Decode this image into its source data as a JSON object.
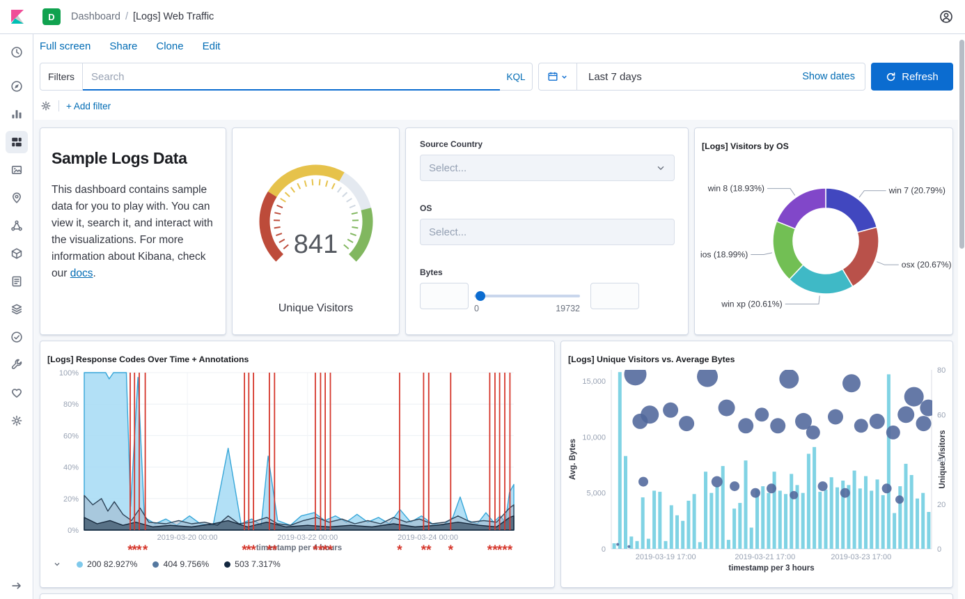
{
  "topbar": {
    "badge": "D",
    "breadcrumbs": [
      "Dashboard",
      "[Logs] Web Traffic"
    ],
    "separator": "/"
  },
  "sidebar": {
    "icons": [
      "clock-icon",
      "discover-icon",
      "visualize-icon",
      "dashboard-icon",
      "canvas-icon",
      "maps-icon",
      "machine-learning-icon",
      "infrastructure-icon",
      "logs-icon",
      "apm-icon",
      "uptime-icon",
      "dev-tools-icon",
      "monitoring-icon",
      "management-icon"
    ],
    "active_index": 3
  },
  "toolbar": {
    "actions": [
      "Full screen",
      "Share",
      "Clone",
      "Edit"
    ]
  },
  "query_bar": {
    "filters_label": "Filters",
    "search_placeholder": "Search",
    "kql_label": "KQL",
    "time_value": "Last 7 days",
    "show_dates": "Show dates",
    "refresh": "Refresh"
  },
  "filter_bar": {
    "add_filter": "+ Add filter"
  },
  "colors": {
    "accent_link": "#006bb4",
    "primary_button": "#0b6cd0",
    "badge_green": "#10a24f",
    "panel_border": "#d3dae6",
    "annotation_red": "#d5372c"
  },
  "panels": {
    "markdown": {
      "title": "Sample Logs Data",
      "text": "This dashboard contains sample data for you to play with. You can view it, search it, and interact with the visualizations. For more information about Kibana, check our ",
      "link": "docs",
      "suffix": "."
    },
    "controls": {
      "country_label": "Source Country",
      "country_placeholder": "Select...",
      "os_label": "OS",
      "os_placeholder": "Select...",
      "bytes_label": "Bytes",
      "range_min": "0",
      "range_max": "19732"
    }
  },
  "chart_data": [
    {
      "type": "gauge",
      "value": "841",
      "label": "Unique Visitors",
      "sweep_deg": [
        -135,
        135
      ],
      "segments": [
        {
          "from": -135,
          "to": -58,
          "color": "#bd4b3a"
        },
        {
          "from": -58,
          "to": 30,
          "color": "#e6c24b"
        },
        {
          "from": 30,
          "to": 76,
          "color": "#e4e9f0"
        },
        {
          "from": 76,
          "to": 135,
          "color": "#81b75f"
        }
      ]
    },
    {
      "type": "pie",
      "title": "[Logs] Visitors by OS",
      "donut": true,
      "slices": [
        {
          "label": "win 7",
          "pct": 20.79,
          "color": "#4147bf"
        },
        {
          "label": "osx",
          "pct": 20.67,
          "color": "#b9514a"
        },
        {
          "label": "win xp",
          "pct": 20.61,
          "color": "#3fb9c6"
        },
        {
          "label": "ios",
          "pct": 18.99,
          "color": "#72bf54"
        },
        {
          "label": "win 8",
          "pct": 18.93,
          "color": "#8147c9"
        }
      ]
    },
    {
      "type": "area",
      "title": "[Logs] Response Codes Over Time + Annotations",
      "xlabel": "timestamp per 4 hours",
      "x_ticks": [
        "2019-03-20 00:00",
        "2019-03-22 00:00",
        "2019-03-24 00:00"
      ],
      "x_tick_pos": [
        0.24,
        0.52,
        0.8
      ],
      "y_ticks": [
        "0%",
        "20%",
        "40%",
        "60%",
        "80%",
        "100%"
      ],
      "ylim": [
        0,
        100
      ],
      "annotation_color": "#d5372c",
      "annotation_marker": "*",
      "annotations_x": [
        0.107,
        0.117,
        0.128,
        0.142,
        0.373,
        0.383,
        0.394,
        0.431,
        0.443,
        0.538,
        0.55,
        0.561,
        0.573,
        0.734,
        0.79,
        0.802,
        0.853,
        0.944,
        0.956,
        0.967,
        0.979,
        0.991
      ],
      "series": [
        {
          "name": "200",
          "pct_label": "82.927%",
          "legend_color": "#7fc9eb",
          "fill": "#a4dbf5",
          "fill_opacity": 0.85,
          "line": "#36a6d8",
          "values": [
            [
              0,
              100
            ],
            [
              0.05,
              100
            ],
            [
              0.058,
              96
            ],
            [
              0.068,
              100
            ],
            [
              0.098,
              100
            ],
            [
              0.108,
              15
            ],
            [
              0.125,
              97
            ],
            [
              0.14,
              8
            ],
            [
              0.165,
              4
            ],
            [
              0.19,
              7
            ],
            [
              0.215,
              3
            ],
            [
              0.245,
              9
            ],
            [
              0.27,
              4
            ],
            [
              0.3,
              3
            ],
            [
              0.335,
              52
            ],
            [
              0.365,
              4
            ],
            [
              0.39,
              7
            ],
            [
              0.412,
              3
            ],
            [
              0.428,
              47
            ],
            [
              0.45,
              6
            ],
            [
              0.48,
              3
            ],
            [
              0.505,
              9
            ],
            [
              0.535,
              11
            ],
            [
              0.56,
              6
            ],
            [
              0.585,
              9
            ],
            [
              0.61,
              5
            ],
            [
              0.635,
              10
            ],
            [
              0.66,
              5
            ],
            [
              0.685,
              8
            ],
            [
              0.71,
              4
            ],
            [
              0.735,
              13
            ],
            [
              0.76,
              5
            ],
            [
              0.785,
              9
            ],
            [
              0.81,
              4
            ],
            [
              0.835,
              3
            ],
            [
              0.858,
              8
            ],
            [
              0.875,
              21
            ],
            [
              0.893,
              6
            ],
            [
              0.915,
              4
            ],
            [
              0.935,
              11
            ],
            [
              0.953,
              5
            ],
            [
              0.968,
              9
            ],
            [
              0.98,
              5
            ],
            [
              0.99,
              24
            ],
            [
              1,
              29
            ]
          ]
        },
        {
          "name": "404",
          "pct_label": "9.756%",
          "legend_color": "#54789f",
          "fill": "#9db0c3",
          "fill_opacity": 0.5,
          "line": "#2c4257",
          "values": [
            [
              0,
              22
            ],
            [
              0.02,
              16
            ],
            [
              0.04,
              20
            ],
            [
              0.055,
              12
            ],
            [
              0.07,
              18
            ],
            [
              0.09,
              10
            ],
            [
              0.11,
              6
            ],
            [
              0.13,
              14
            ],
            [
              0.15,
              5
            ],
            [
              0.19,
              4
            ],
            [
              0.22,
              6
            ],
            [
              0.25,
              4
            ],
            [
              0.28,
              5
            ],
            [
              0.31,
              3
            ],
            [
              0.335,
              9
            ],
            [
              0.36,
              4
            ],
            [
              0.39,
              5
            ],
            [
              0.425,
              8
            ],
            [
              0.45,
              4
            ],
            [
              0.48,
              3
            ],
            [
              0.51,
              6
            ],
            [
              0.54,
              8
            ],
            [
              0.57,
              5
            ],
            [
              0.6,
              7
            ],
            [
              0.63,
              4
            ],
            [
              0.66,
              6
            ],
            [
              0.69,
              4
            ],
            [
              0.72,
              8
            ],
            [
              0.75,
              5
            ],
            [
              0.78,
              7
            ],
            [
              0.81,
              4
            ],
            [
              0.84,
              5
            ],
            [
              0.87,
              9
            ],
            [
              0.9,
              5
            ],
            [
              0.93,
              6
            ],
            [
              0.96,
              5
            ],
            [
              0.99,
              14
            ],
            [
              1,
              16
            ]
          ]
        },
        {
          "name": "503",
          "pct_label": "7.317%",
          "legend_color": "#13273f",
          "fill": "#23374d",
          "fill_opacity": 0.6,
          "line": "#14263a",
          "values": [
            [
              0,
              8
            ],
            [
              0.03,
              4
            ],
            [
              0.06,
              6
            ],
            [
              0.09,
              3
            ],
            [
              0.12,
              5
            ],
            [
              0.16,
              2
            ],
            [
              0.2,
              3
            ],
            [
              0.25,
              2
            ],
            [
              0.3,
              4
            ],
            [
              0.335,
              6
            ],
            [
              0.38,
              2
            ],
            [
              0.425,
              5
            ],
            [
              0.47,
              2
            ],
            [
              0.52,
              3
            ],
            [
              0.57,
              2
            ],
            [
              0.62,
              3
            ],
            [
              0.67,
              2
            ],
            [
              0.72,
              4
            ],
            [
              0.77,
              2
            ],
            [
              0.82,
              3
            ],
            [
              0.87,
              5
            ],
            [
              0.92,
              3
            ],
            [
              0.96,
              2
            ],
            [
              0.99,
              8
            ],
            [
              1,
              9
            ]
          ]
        }
      ]
    },
    {
      "type": "bar+bubble",
      "title": "[Logs] Unique Visitors vs. Average Bytes",
      "xlabel": "timestamp per 3 hours",
      "x_ticks": [
        "2019-03-19 17:00",
        "2019-03-21 17:00",
        "2019-03-23 17:00"
      ],
      "x_tick_pos": [
        0.17,
        0.48,
        0.78
      ],
      "left_axis": {
        "label": "Avg. Bytes",
        "tick_values": [
          0,
          5000,
          10000,
          15000
        ],
        "tick_labels": [
          "0",
          "5,000",
          "10,000",
          "15,000"
        ],
        "max": 16000
      },
      "right_axis": {
        "label": "Unique Visitors",
        "tick_values": [
          0,
          20,
          40,
          60,
          80
        ],
        "tick_labels": [
          "0",
          "20",
          "40",
          "60",
          "80"
        ],
        "max": 80
      },
      "bars": {
        "color": "#80d3e4",
        "values": [
          500,
          15800,
          8300,
          1100,
          700,
          4600,
          900,
          5200,
          5100,
          700,
          3900,
          3000,
          2500,
          4300,
          4900,
          600,
          6900,
          5000,
          5600,
          7400,
          800,
          3600,
          4100,
          7900,
          1900,
          5300,
          5600,
          5000,
          6900,
          5200,
          4900,
          6700,
          5700,
          5000,
          8500,
          9100,
          5100,
          5300,
          6400,
          5500,
          6100,
          5700,
          7000,
          5400,
          6500,
          5200,
          6200,
          4800,
          15600,
          3200,
          5600,
          7600,
          6600,
          4500,
          5000,
          3300
        ]
      },
      "bubbles": {
        "color": "#50669b",
        "opacity": 0.88,
        "points": [
          {
            "x": 0.02,
            "y": 2,
            "r": 2
          },
          {
            "x": 0.055,
            "y": 1,
            "r": 2
          },
          {
            "x": 0.075,
            "y": 78,
            "r": 16
          },
          {
            "x": 0.09,
            "y": 57,
            "r": 11
          },
          {
            "x": 0.12,
            "y": 60,
            "r": 13
          },
          {
            "x": 0.1,
            "y": 30,
            "r": 7
          },
          {
            "x": 0.185,
            "y": 62,
            "r": 11
          },
          {
            "x": 0.235,
            "y": 56,
            "r": 11
          },
          {
            "x": 0.3,
            "y": 77,
            "r": 15
          },
          {
            "x": 0.33,
            "y": 30,
            "r": 8
          },
          {
            "x": 0.36,
            "y": 63,
            "r": 12
          },
          {
            "x": 0.385,
            "y": 28,
            "r": 7
          },
          {
            "x": 0.42,
            "y": 55,
            "r": 11
          },
          {
            "x": 0.45,
            "y": 25,
            "r": 7
          },
          {
            "x": 0.47,
            "y": 60,
            "r": 10
          },
          {
            "x": 0.5,
            "y": 27,
            "r": 7
          },
          {
            "x": 0.52,
            "y": 55,
            "r": 11
          },
          {
            "x": 0.555,
            "y": 76,
            "r": 14
          },
          {
            "x": 0.57,
            "y": 24,
            "r": 6
          },
          {
            "x": 0.6,
            "y": 57,
            "r": 12
          },
          {
            "x": 0.63,
            "y": 52,
            "r": 10
          },
          {
            "x": 0.66,
            "y": 28,
            "r": 7
          },
          {
            "x": 0.7,
            "y": 59,
            "r": 11
          },
          {
            "x": 0.73,
            "y": 25,
            "r": 7
          },
          {
            "x": 0.75,
            "y": 74,
            "r": 13
          },
          {
            "x": 0.78,
            "y": 55,
            "r": 10
          },
          {
            "x": 0.83,
            "y": 57,
            "r": 11
          },
          {
            "x": 0.86,
            "y": 27,
            "r": 7
          },
          {
            "x": 0.88,
            "y": 52,
            "r": 10
          },
          {
            "x": 0.9,
            "y": 22,
            "r": 6
          },
          {
            "x": 0.92,
            "y": 60,
            "r": 12
          },
          {
            "x": 0.945,
            "y": 68,
            "r": 14
          },
          {
            "x": 0.975,
            "y": 56,
            "r": 11
          },
          {
            "x": 0.99,
            "y": 63,
            "r": 12
          }
        ]
      }
    }
  ]
}
